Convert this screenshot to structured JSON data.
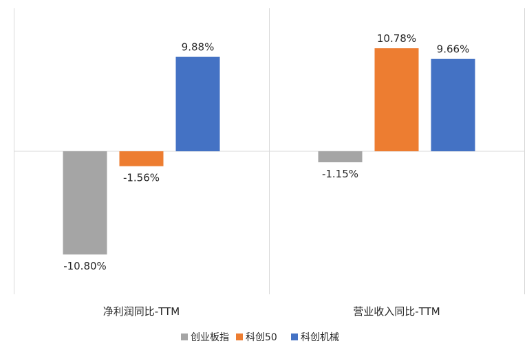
{
  "chart_data": {
    "type": "bar",
    "categories": [
      "净利润同比-TTM",
      "营业收入同比-TTM"
    ],
    "series": [
      {
        "name": "创业板指",
        "values": [
          -10.8,
          -1.15
        ],
        "labels": [
          "-10.80%",
          "-1.15%"
        ],
        "color": "#A5A5A5"
      },
      {
        "name": "科创50",
        "values": [
          -1.56,
          10.78
        ],
        "labels": [
          "-1.56%",
          "10.78%"
        ],
        "color": "#ED7D31"
      },
      {
        "name": "科创机械",
        "values": [
          9.88,
          9.66
        ],
        "labels": [
          "9.88%",
          "9.66%"
        ],
        "color": "#4472C4"
      }
    ],
    "ylim": [
      -15.0,
      15.0
    ],
    "grid": false,
    "legend": "bottom-center",
    "colors": {
      "axis": "#D9D9D9",
      "text": "#262626",
      "background": "#FFFFFF"
    }
  }
}
